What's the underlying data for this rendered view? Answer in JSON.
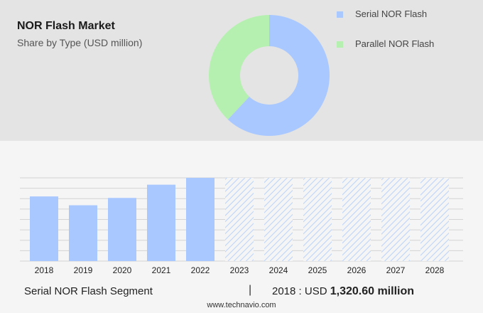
{
  "chart_data": [
    {
      "type": "pie",
      "title": "NOR Flash Market",
      "subtitle": "Share by Type (USD million)",
      "donut": true,
      "slices": [
        {
          "name": "Serial NOR Flash",
          "value": 62,
          "color": "#a9c8ff"
        },
        {
          "name": "Parallel NOR Flash",
          "value": 38,
          "color": "#b6f0b0"
        }
      ],
      "legend_position": "top-right"
    },
    {
      "type": "bar",
      "categories": [
        "2018",
        "2019",
        "2020",
        "2021",
        "2022",
        "2023",
        "2024",
        "2025",
        "2026",
        "2027",
        "2028"
      ],
      "values": [
        1320.6,
        1140,
        1290,
        1560,
        1700,
        null,
        null,
        null,
        null,
        null,
        null
      ],
      "forecast_categories": [
        "2023",
        "2024",
        "2025",
        "2026",
        "2027",
        "2028"
      ],
      "ylim": [
        0,
        1700
      ],
      "grid": true,
      "bar_color": "#a9c8ff",
      "hatch_color": "#b9d2fb"
    }
  ],
  "footer": {
    "segment_label": "Serial NOR Flash Segment",
    "separator": "|",
    "year_text": "2018 : USD",
    "value_text": "1,320.60 million"
  },
  "source": "www.technavio.com"
}
